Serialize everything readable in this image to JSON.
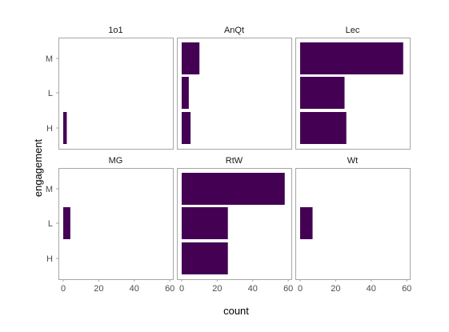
{
  "chart_data": {
    "type": "bar",
    "orientation": "horizontal",
    "facet_layout": [
      2,
      3
    ],
    "xlabel": "count",
    "ylabel": "engagement",
    "xlim": [
      0,
      60
    ],
    "x_ticks": [
      "0",
      "20",
      "40",
      "60"
    ],
    "categories": [
      "M",
      "L",
      "H"
    ],
    "bar_color": "#440154",
    "grid": false,
    "panels": [
      {
        "name": "1o1",
        "values": [
          0,
          0,
          2
        ]
      },
      {
        "name": "AnQt",
        "values": [
          10,
          4,
          5
        ]
      },
      {
        "name": "Lec",
        "values": [
          58,
          25,
          26
        ]
      },
      {
        "name": "MG",
        "values": [
          0,
          4,
          0
        ]
      },
      {
        "name": "RtW",
        "values": [
          58,
          26,
          26
        ]
      },
      {
        "name": "Wt",
        "values": [
          0,
          7,
          0
        ]
      }
    ]
  }
}
